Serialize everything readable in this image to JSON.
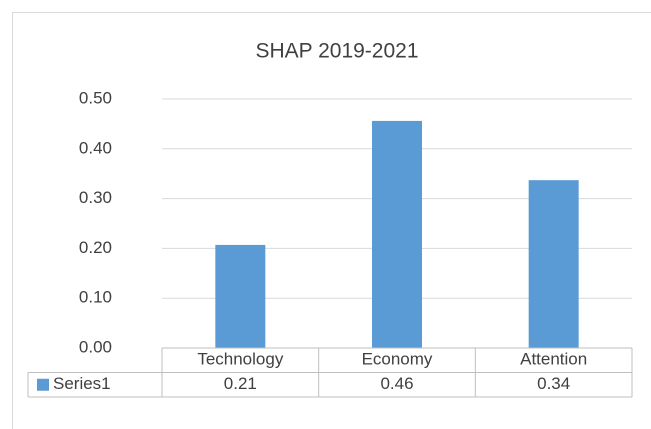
{
  "chart_data": {
    "type": "bar",
    "title": "SHAP 2019-2021",
    "categories": [
      "Technology",
      "Economy",
      "Attention"
    ],
    "series": [
      {
        "name": "Series1",
        "color": "#5b9bd5",
        "values": [
          0.207,
          0.456,
          0.337
        ],
        "value_labels": [
          "0.21",
          "0.46",
          "0.34"
        ]
      }
    ],
    "ylim": [
      0,
      0.5
    ],
    "yticks": [
      {
        "value": 0,
        "label": "0.00"
      },
      {
        "value": 0.1,
        "label": "0.10"
      },
      {
        "value": 0.2,
        "label": "0.20"
      },
      {
        "value": 0.3,
        "label": "0.30"
      },
      {
        "value": 0.4,
        "label": "0.40"
      },
      {
        "value": 0.5,
        "label": "0.50"
      }
    ],
    "grid": true,
    "data_table": true
  }
}
